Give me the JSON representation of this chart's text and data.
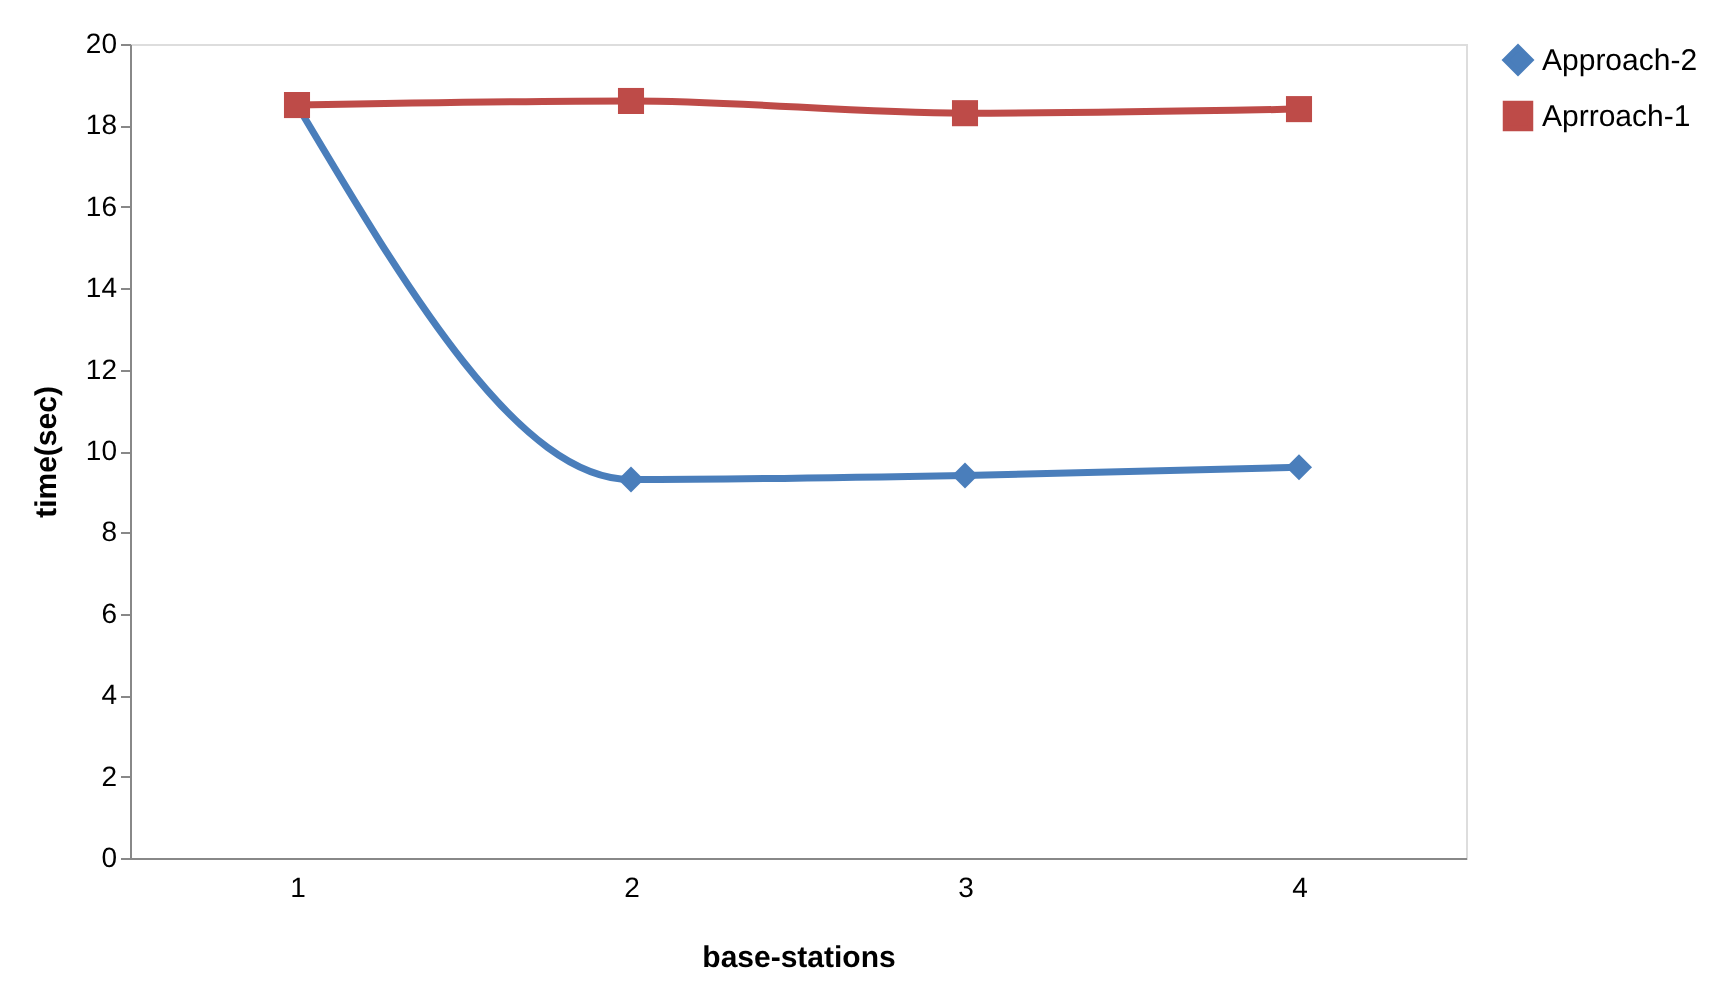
{
  "chart_data": {
    "type": "line",
    "xlabel": "base-stations",
    "ylabel": "time(sec)",
    "categories": [
      "1",
      "2",
      "3",
      "4"
    ],
    "series": [
      {
        "name": "Approach-2",
        "color": "#4a7ebb",
        "marker": "diamond",
        "values": [
          18.5,
          9.3,
          9.4,
          9.6
        ]
      },
      {
        "name": "Aprroach-1",
        "color": "#be4b48",
        "marker": "square",
        "values": [
          18.5,
          18.6,
          18.3,
          18.4
        ]
      }
    ],
    "ylim": [
      0,
      20
    ],
    "yticks": [
      0,
      2,
      4,
      6,
      8,
      10,
      12,
      14,
      16,
      18,
      20
    ],
    "grid": false,
    "legend": "right",
    "line_style": "solid"
  }
}
